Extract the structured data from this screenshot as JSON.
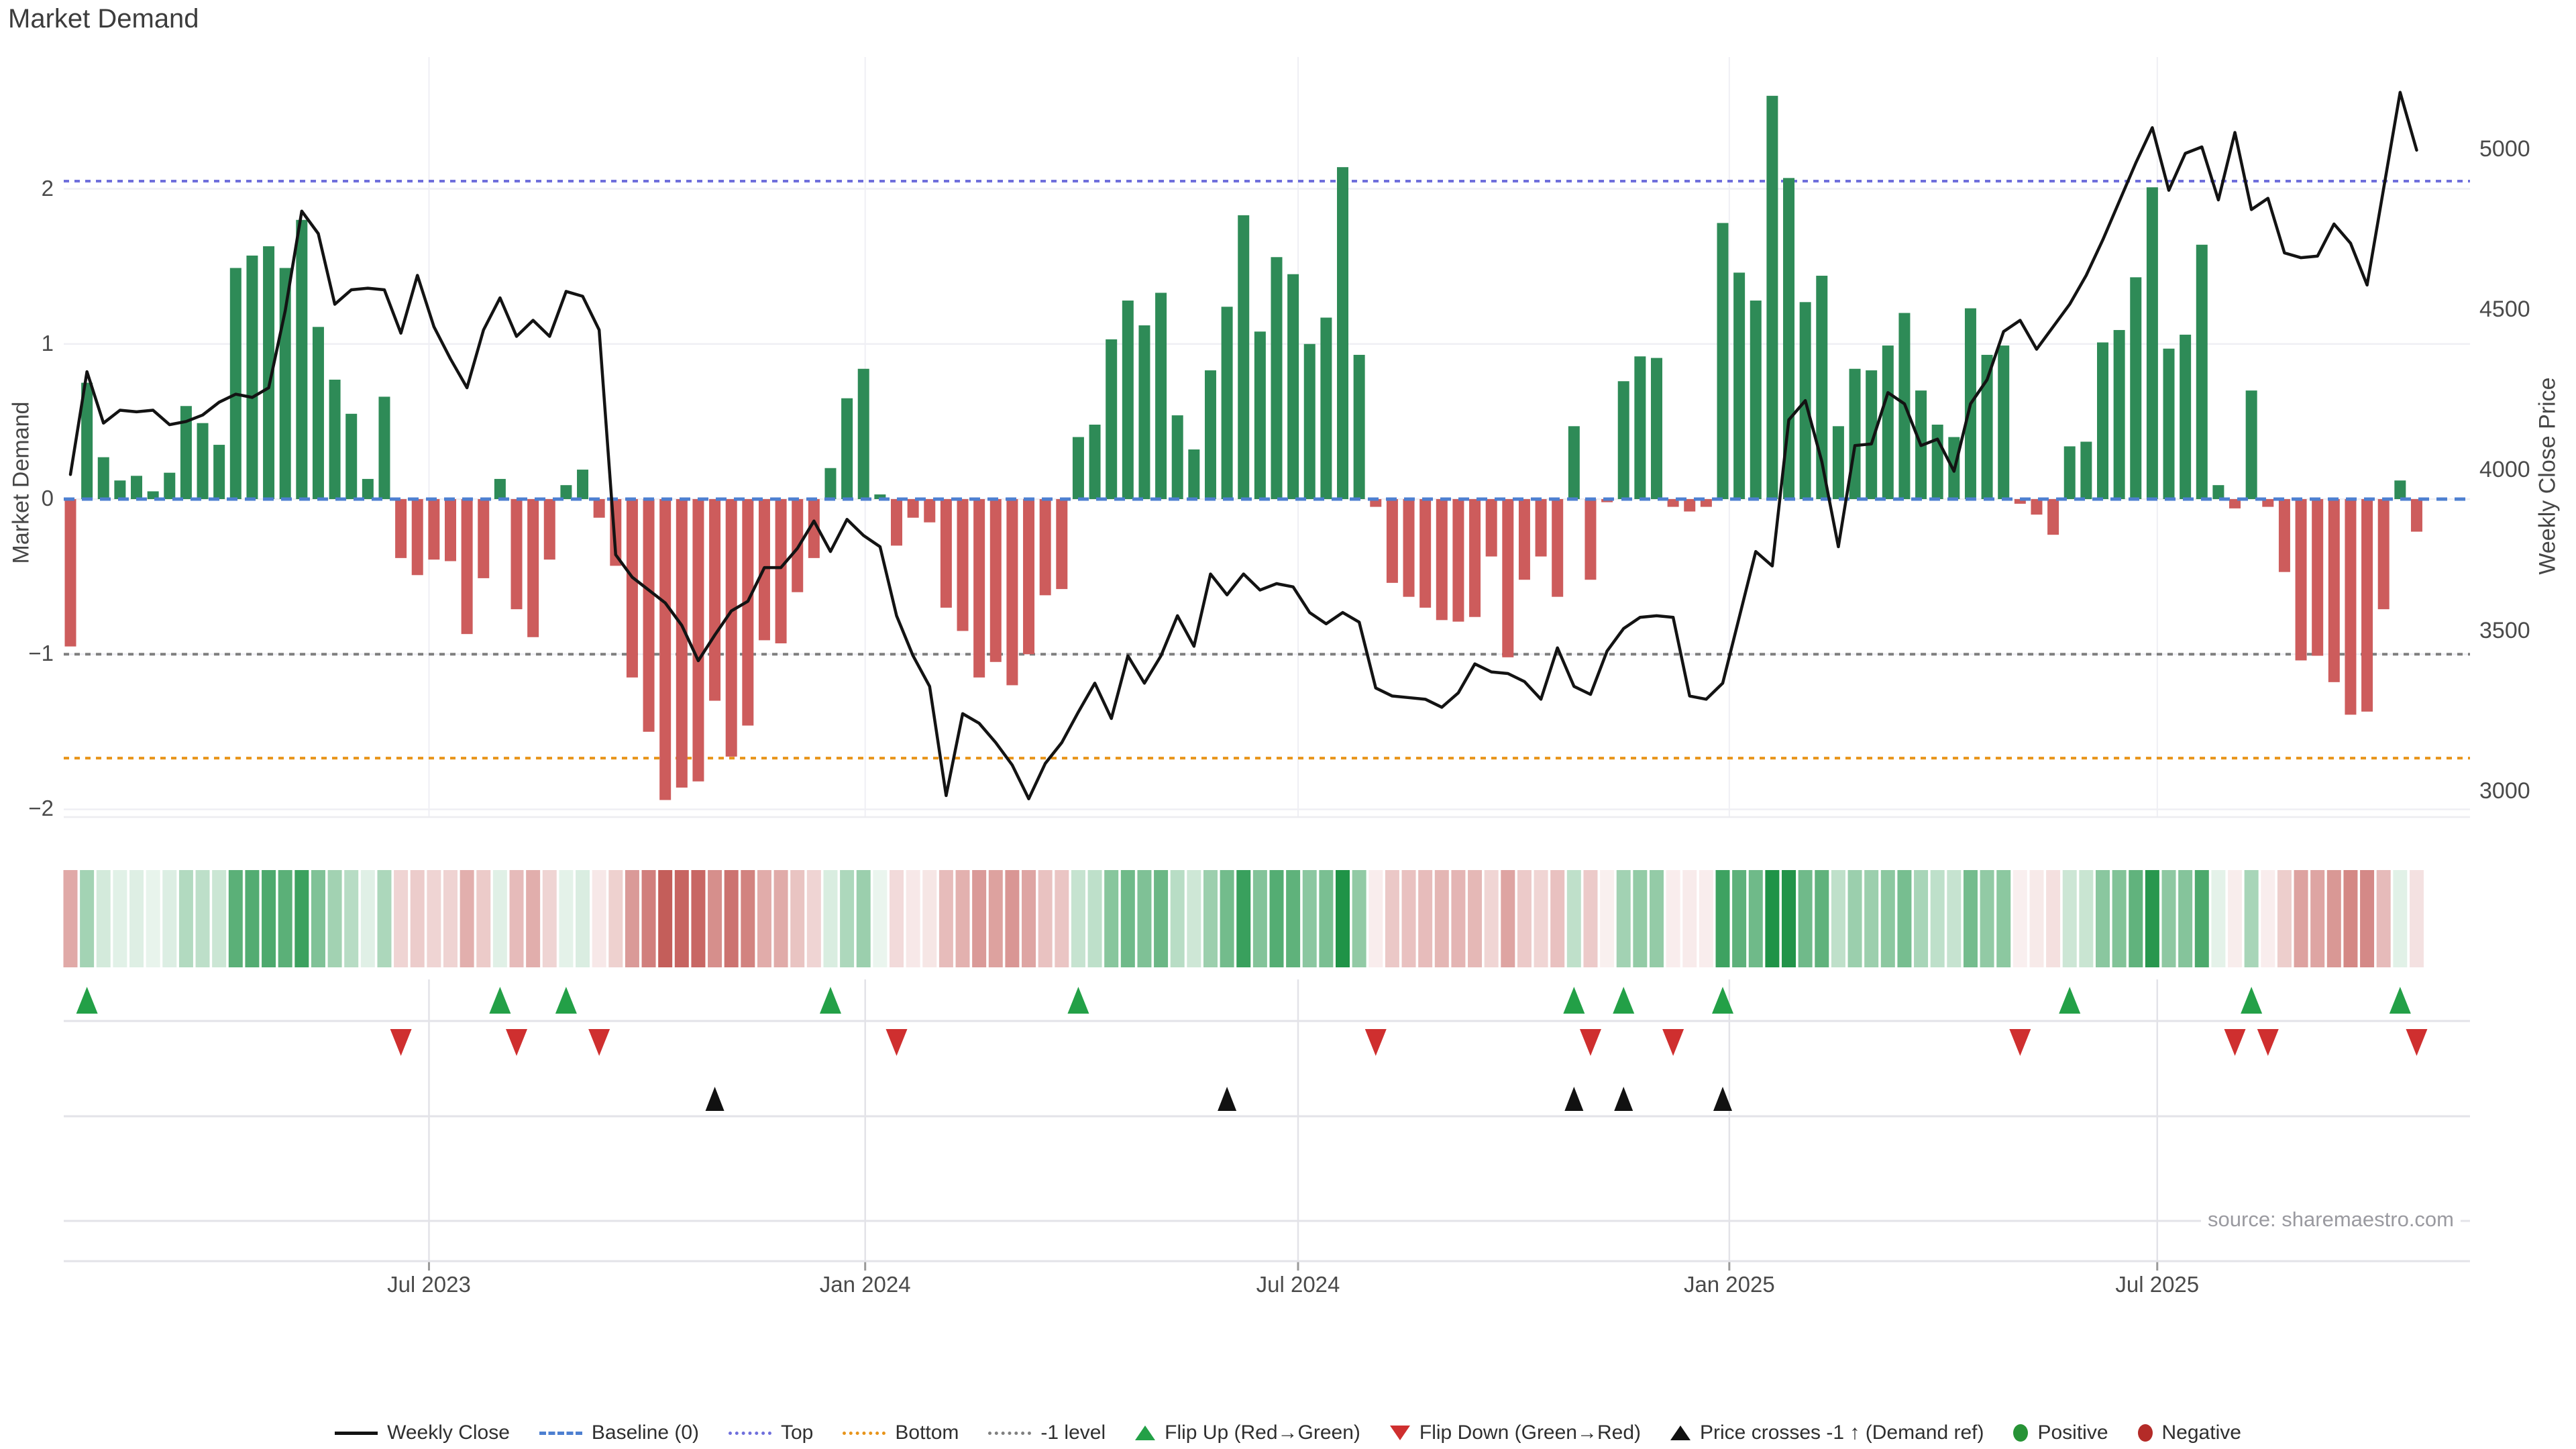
{
  "title": "Market Demand",
  "source_note": "source: sharemaestro.com",
  "axes": {
    "left_label": "Market Demand",
    "right_label": "Weekly Close Price",
    "left_ticks": [
      {
        "value": 2,
        "label": "2"
      },
      {
        "value": 1,
        "label": "1"
      },
      {
        "value": 0,
        "label": "0"
      },
      {
        "value": -1,
        "label": "−1"
      },
      {
        "value": -2,
        "label": "−2"
      }
    ],
    "right_ticks": [
      {
        "value": 5000,
        "label": "5000"
      },
      {
        "value": 4500,
        "label": "4500"
      },
      {
        "value": 4000,
        "label": "4000"
      },
      {
        "value": 3500,
        "label": "3500"
      },
      {
        "value": 3000,
        "label": "3000"
      }
    ],
    "x_ticks": [
      {
        "week": 21.7,
        "label": "Jul 2023"
      },
      {
        "week": 48.1,
        "label": "Jan 2024"
      },
      {
        "week": 74.3,
        "label": "Jul 2024"
      },
      {
        "week": 100.4,
        "label": "Jan 2025"
      },
      {
        "week": 126.3,
        "label": "Jul 2025"
      }
    ]
  },
  "colors": {
    "bar_positive": "#2e8b57",
    "bar_negative": "#cd5c5c",
    "price_line": "#131313",
    "baseline": "#4d7fd0",
    "top_line": "#6f6fdc",
    "bottom_line": "#e8941a",
    "minus1_line": "#7f7f7f",
    "flip_up": "#23a047",
    "flip_down": "#cf2f2f",
    "price_cross": "#111111",
    "positive_dot": "#279336",
    "negative_dot": "#b42b28",
    "grid": "#efeff4",
    "panel_line": "#e3e3e8",
    "tick_mark": "#9a9a9a"
  },
  "legend": {
    "items": [
      {
        "label": "Weekly Close",
        "icon": "solid-line",
        "color": "#131313"
      },
      {
        "label": "Baseline (0)",
        "icon": "dashed-line",
        "color": "#4d7fd0"
      },
      {
        "label": "Top",
        "icon": "dotted-line",
        "color": "#6f6fdc"
      },
      {
        "label": "Bottom",
        "icon": "dotted-line",
        "color": "#e8941a"
      },
      {
        "label": "-1 level",
        "icon": "dotted-line",
        "color": "#7f7f7f"
      },
      {
        "label": "Flip Up (Red→Green)",
        "icon": "triangle-up",
        "color": "#23a047"
      },
      {
        "label": "Flip Down (Green→Red)",
        "icon": "triangle-down",
        "color": "#cf2f2f"
      },
      {
        "label": "Price crosses -1 ↑ (Demand ref)",
        "icon": "triangle-up",
        "color": "#111111"
      },
      {
        "label": "Positive",
        "icon": "circle",
        "color": "#279336"
      },
      {
        "label": "Negative",
        "icon": "circle",
        "color": "#b42b28"
      }
    ]
  },
  "chart_data": {
    "type": "combo-bar-line-heatmap",
    "x_unit": "week",
    "n_weeks": 143,
    "demand_ylim": [
      -2.05,
      2.85
    ],
    "price_ylim": [
      2923,
      5290
    ],
    "ref_lines": {
      "baseline": 0,
      "top": 2.05,
      "bottom": -1.67,
      "minus1": -1
    },
    "series": [
      {
        "name": "Market Demand",
        "type": "bar",
        "values": [
          -0.95,
          0.75,
          0.27,
          0.12,
          0.15,
          0.05,
          0.17,
          0.6,
          0.49,
          0.35,
          1.49,
          1.57,
          1.63,
          1.49,
          1.8,
          1.11,
          0.77,
          0.55,
          0.13,
          0.66,
          -0.38,
          -0.49,
          -0.39,
          -0.4,
          -0.87,
          -0.51,
          0.13,
          -0.71,
          -0.89,
          -0.39,
          0.09,
          0.19,
          -0.12,
          -0.43,
          -1.15,
          -1.5,
          -1.94,
          -1.86,
          -1.82,
          -1.3,
          -1.66,
          -1.46,
          -0.91,
          -0.93,
          -0.6,
          -0.38,
          0.2,
          0.65,
          0.84,
          0.03,
          -0.3,
          -0.12,
          -0.15,
          -0.7,
          -0.85,
          -1.15,
          -1.05,
          -1.2,
          -1.0,
          -0.62,
          -0.58,
          0.4,
          0.48,
          1.03,
          1.28,
          1.12,
          1.33,
          0.54,
          0.32,
          0.83,
          1.24,
          1.83,
          1.08,
          1.56,
          1.45,
          1.0,
          1.17,
          2.14,
          0.93,
          -0.05,
          -0.54,
          -0.63,
          -0.7,
          -0.78,
          -0.79,
          -0.76,
          -0.37,
          -1.02,
          -0.52,
          -0.37,
          -0.63,
          0.47,
          -0.52,
          -0.02,
          0.76,
          0.92,
          0.91,
          -0.05,
          -0.08,
          -0.05,
          1.78,
          1.46,
          1.28,
          2.6,
          2.07,
          1.27,
          1.44,
          0.47,
          0.84,
          0.83,
          0.99,
          1.2,
          0.7,
          0.48,
          0.4,
          1.23,
          0.93,
          0.99,
          -0.03,
          -0.1,
          -0.23,
          0.34,
          0.37,
          1.01,
          1.09,
          1.43,
          2.01,
          0.97,
          1.06,
          1.64,
          0.09,
          -0.06,
          0.7,
          -0.05,
          -0.47,
          -1.04,
          -1.01,
          -1.18,
          -1.39,
          -1.37,
          -0.71,
          0.12,
          -0.21
        ]
      },
      {
        "name": "Weekly Close",
        "type": "line",
        "values": [
          3990,
          4310,
          4150,
          4190,
          4185,
          4190,
          4145,
          4155,
          4175,
          4215,
          4240,
          4230,
          4260,
          4500,
          4810,
          4740,
          4520,
          4565,
          4570,
          4565,
          4430,
          4610,
          4450,
          4350,
          4260,
          4440,
          4540,
          4420,
          4470,
          4420,
          4560,
          4545,
          4440,
          3740,
          3670,
          3630,
          3590,
          3520,
          3410,
          3490,
          3565,
          3595,
          3700,
          3700,
          3760,
          3845,
          3750,
          3850,
          3800,
          3765,
          3550,
          3425,
          3330,
          2990,
          3245,
          3215,
          3155,
          3085,
          2980,
          3090,
          3155,
          3250,
          3340,
          3230,
          3425,
          3340,
          3425,
          3550,
          3455,
          3680,
          3615,
          3680,
          3630,
          3650,
          3640,
          3560,
          3525,
          3560,
          3530,
          3325,
          3300,
          3295,
          3290,
          3265,
          3310,
          3400,
          3375,
          3370,
          3345,
          3290,
          3450,
          3330,
          3305,
          3440,
          3510,
          3545,
          3550,
          3545,
          3300,
          3290,
          3340,
          3545,
          3750,
          3705,
          4160,
          4220,
          4030,
          3765,
          4080,
          4085,
          4245,
          4210,
          4080,
          4100,
          4000,
          4210,
          4285,
          4435,
          4470,
          4380,
          4450,
          4520,
          4610,
          4720,
          4840,
          4960,
          5070,
          4875,
          4990,
          5010,
          4845,
          5055,
          4815,
          4850,
          4680,
          4665,
          4670,
          4770,
          4710,
          4580,
          4880,
          5180,
          5000
        ]
      }
    ],
    "markers": {
      "flip_up_weeks": [
        1,
        26,
        30,
        46,
        61,
        91,
        94,
        100,
        121,
        132,
        141
      ],
      "flip_down_weeks": [
        20,
        27,
        32,
        50,
        79,
        92,
        97,
        118,
        131,
        133,
        142
      ],
      "price_cross_weeks": [
        39,
        70,
        91,
        94,
        100
      ]
    },
    "heatmap": "one cell per week, color derived from Market Demand bar value (green positive, red negative, intensity = magnitude)"
  }
}
